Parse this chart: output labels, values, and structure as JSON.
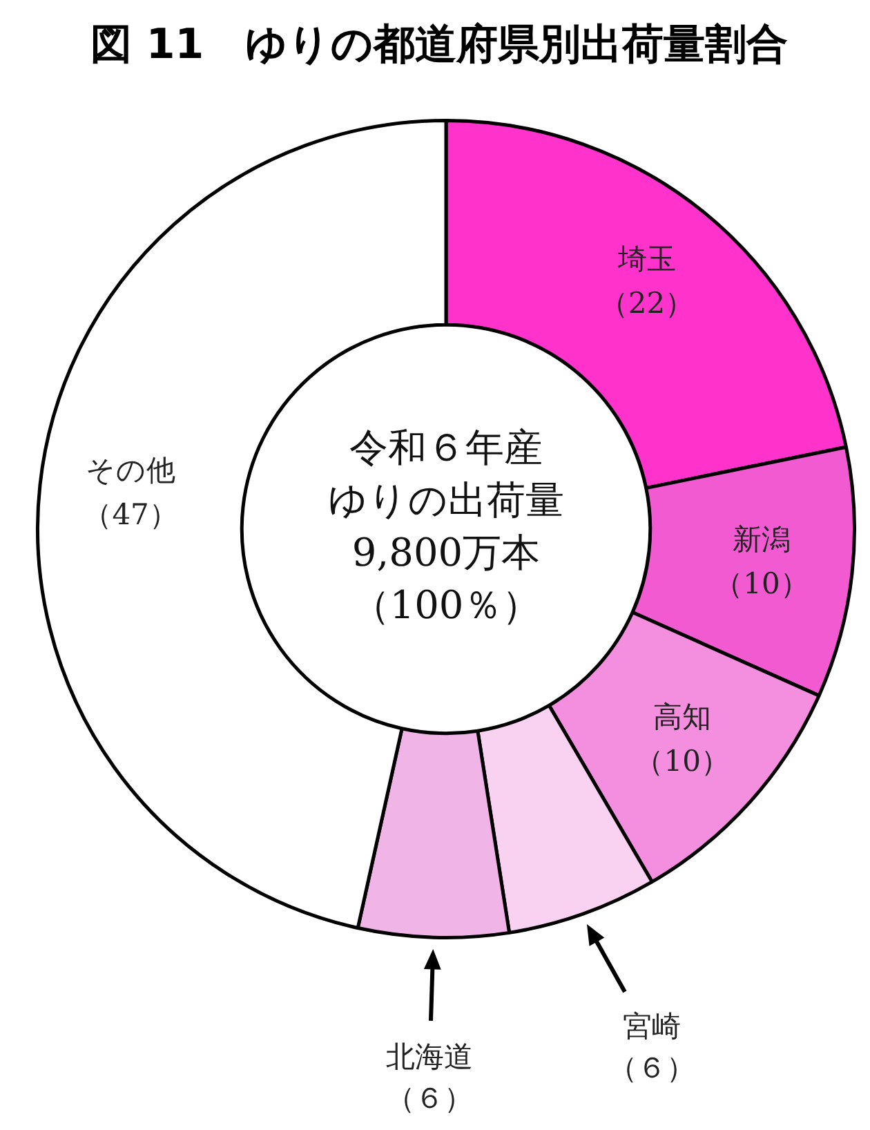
{
  "chart_data": {
    "type": "donut",
    "title": "図 11　ゆりの都道府県別出荷量割合",
    "categories": [
      "埼玉",
      "新潟",
      "高知",
      "宮崎",
      "北海道",
      "その他"
    ],
    "values": [
      22,
      10,
      10,
      6,
      6,
      47
    ],
    "value_labels": [
      "（22）",
      "（10）",
      "（10）",
      "（６）",
      "（６）",
      "（47）"
    ],
    "colors": [
      "#ff33cc",
      "#f25ad2",
      "#f48ede",
      "#f8d2f0",
      "#f0b4e6",
      "#ffffff"
    ],
    "annotations": [
      "令和６年産",
      "ゆりの出荷量",
      "9,800万本",
      "（100％）"
    ],
    "legend": false
  }
}
